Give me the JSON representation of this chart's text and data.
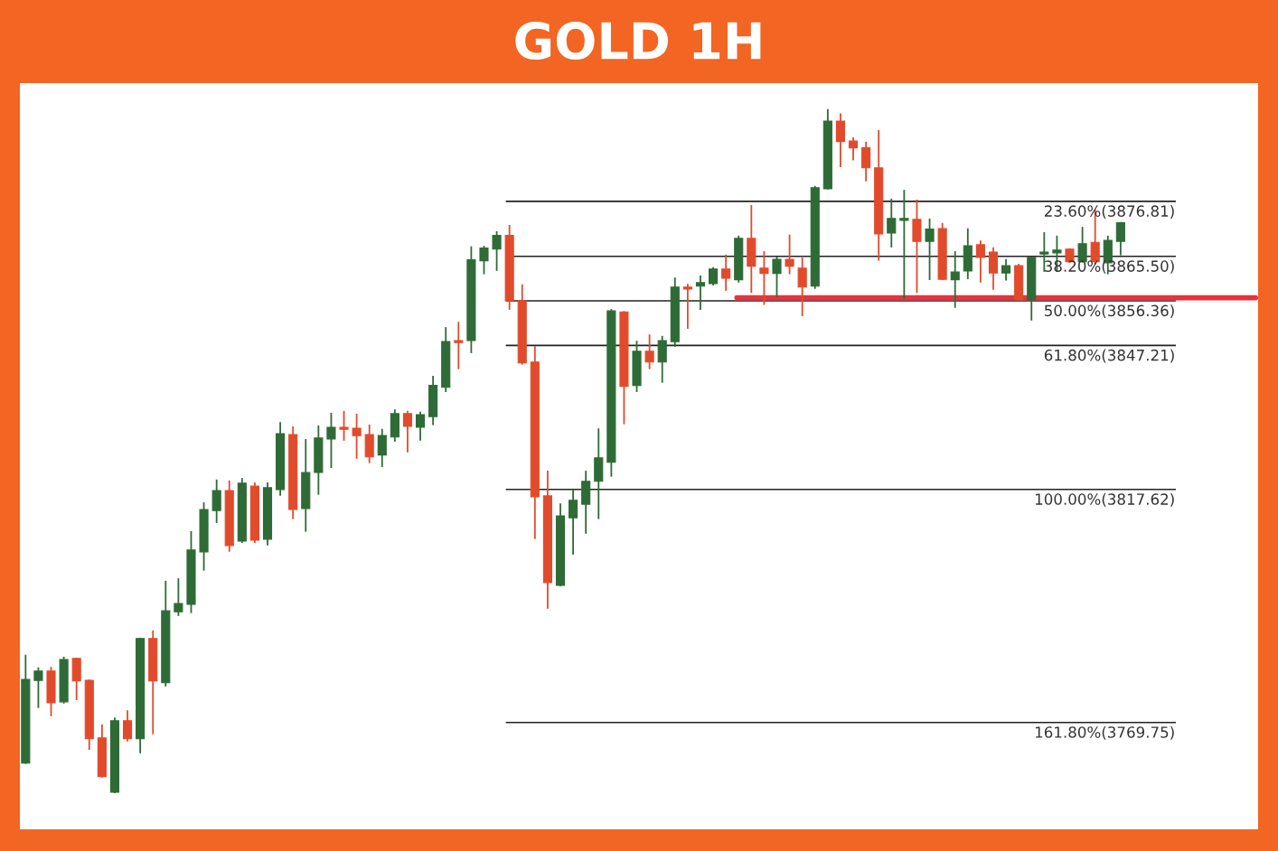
{
  "chart_data": {
    "type": "candlestick",
    "title": "GOLD 1H",
    "categories": [
      null,
      null,
      null,
      null,
      null,
      null,
      null,
      null,
      null,
      null,
      null,
      null,
      null,
      null,
      null,
      null,
      null,
      null,
      null,
      null,
      null,
      null,
      null,
      null,
      null,
      null,
      null,
      null,
      null,
      null,
      null,
      null,
      null,
      null,
      null,
      null,
      null,
      null,
      null,
      null,
      null,
      null,
      null,
      null,
      null,
      null,
      null,
      null,
      null,
      null,
      null,
      null,
      null,
      null,
      null,
      null,
      null,
      null,
      null,
      null,
      null,
      null,
      null,
      null,
      null,
      null,
      null,
      null,
      null,
      null,
      null,
      null,
      null,
      null,
      null,
      null,
      null,
      null,
      null,
      null,
      null,
      null,
      null,
      null,
      null,
      null,
      null
    ],
    "ohlc": [
      [
        3761.4,
        3783.5,
        3761.4,
        3778.6
      ],
      [
        3778.4,
        3780.9,
        3772.9,
        3780.3
      ],
      [
        3780.3,
        3781.0,
        3771.2,
        3773.8
      ],
      [
        3774.0,
        3783.1,
        3773.8,
        3782.7
      ],
      [
        3782.9,
        3782.9,
        3774.5,
        3778.3
      ],
      [
        3778.4,
        3778.4,
        3764.3,
        3766.4
      ],
      [
        3766.6,
        3769.2,
        3758.6,
        3758.6
      ],
      [
        3755.4,
        3770.6,
        3755.4,
        3770.1
      ],
      [
        3770.1,
        3772.1,
        3766.0,
        3766.4
      ],
      [
        3766.4,
        3787.0,
        3763.6,
        3787.0
      ],
      [
        3787.0,
        3788.5,
        3767.5,
        3778.3
      ],
      [
        3777.9,
        3798.7,
        3777.3,
        3792.7
      ],
      [
        3792.5,
        3799.2,
        3791.8,
        3794.2
      ],
      [
        3794.0,
        3808.9,
        3792.4,
        3805.2
      ],
      [
        3804.8,
        3814.8,
        3801.1,
        3813.5
      ],
      [
        3813.3,
        3819.5,
        3810.9,
        3817.4
      ],
      [
        3817.4,
        3819.3,
        3805.0,
        3806.1
      ],
      [
        3807.0,
        3819.8,
        3806.8,
        3818.9
      ],
      [
        3818.3,
        3818.9,
        3806.8,
        3807.2
      ],
      [
        3807.4,
        3818.9,
        3806.3,
        3818.0
      ],
      [
        3817.6,
        3831.3,
        3816.5,
        3829.1
      ],
      [
        3828.9,
        3830.4,
        3811.7,
        3813.5
      ],
      [
        3813.7,
        3827.8,
        3809.1,
        3821.1
      ],
      [
        3821.1,
        3830.6,
        3816.7,
        3828.2
      ],
      [
        3828.0,
        3833.2,
        3822.2,
        3830.4
      ],
      [
        3830.4,
        3833.6,
        3827.8,
        3830.0
      ],
      [
        3830.2,
        3833.0,
        3824.1,
        3828.7
      ],
      [
        3828.9,
        3830.8,
        3823.2,
        3824.3
      ],
      [
        3824.7,
        3829.9,
        3822.4,
        3828.7
      ],
      [
        3828.4,
        3833.9,
        3827.6,
        3833.2
      ],
      [
        3833.2,
        3833.6,
        3825.4,
        3830.6
      ],
      [
        3830.4,
        3833.4,
        3827.8,
        3833.0
      ],
      [
        3832.6,
        3840.8,
        3831.0,
        3839.0
      ],
      [
        3838.6,
        3850.8,
        3837.8,
        3848.0
      ],
      [
        3848.2,
        3851.9,
        3842.5,
        3847.8
      ],
      [
        3848.2,
        3867.4,
        3845.8,
        3864.8
      ],
      [
        3864.6,
        3867.5,
        3862.0,
        3867.2
      ],
      [
        3867.0,
        3870.5,
        3862.7,
        3869.8
      ],
      [
        3869.8,
        3871.8,
        3854.7,
        3856.4
      ],
      [
        3856.4,
        3859.6,
        3843.4,
        3843.6
      ],
      [
        3843.8,
        3846.9,
        3807.6,
        3816.1
      ],
      [
        3816.3,
        3821.3,
        3793.3,
        3798.5
      ],
      [
        3797.9,
        3814.6,
        3797.9,
        3812.2
      ],
      [
        3811.8,
        3817.4,
        3804.4,
        3815.4
      ],
      [
        3814.6,
        3821.3,
        3808.7,
        3819.3
      ],
      [
        3819.3,
        3830.0,
        3811.7,
        3824.1
      ],
      [
        3823.2,
        3854.5,
        3820.4,
        3854.3
      ],
      [
        3854.1,
        3854.1,
        3831.2,
        3838.8
      ],
      [
        3839.0,
        3848.0,
        3837.8,
        3846.0
      ],
      [
        3846.0,
        3849.3,
        3842.5,
        3843.8
      ],
      [
        3843.8,
        3849.0,
        3839.7,
        3848.2
      ],
      [
        3848.0,
        3861.0,
        3847.1,
        3859.2
      ],
      [
        3859.2,
        3859.7,
        3850.8,
        3858.8
      ],
      [
        3859.4,
        3861.4,
        3854.7,
        3860.1
      ],
      [
        3859.9,
        3863.1,
        3859.7,
        3862.9
      ],
      [
        3862.9,
        3865.7,
        3858.6,
        3861.0
      ],
      [
        3860.7,
        3869.6,
        3860.3,
        3869.2
      ],
      [
        3869.2,
        3875.9,
        3858.2,
        3863.5
      ],
      [
        3863.1,
        3866.4,
        3855.7,
        3862.0
      ],
      [
        3862.0,
        3865.3,
        3857.3,
        3864.9
      ],
      [
        3864.9,
        3869.8,
        3862.0,
        3863.5
      ],
      [
        3863.1,
        3865.1,
        3853.4,
        3859.2
      ],
      [
        3859.4,
        3879.8,
        3859.0,
        3879.6
      ],
      [
        3879.4,
        3895.6,
        3879.4,
        3893.3
      ],
      [
        3893.3,
        3894.7,
        3884.0,
        3889.1
      ],
      [
        3889.2,
        3889.8,
        3885.4,
        3887.8
      ],
      [
        3887.8,
        3888.9,
        3881.1,
        3883.7
      ],
      [
        3883.7,
        3891.3,
        3864.8,
        3870.1
      ],
      [
        3870.3,
        3877.2,
        3867.5,
        3873.3
      ],
      [
        3872.9,
        3879.0,
        3857.0,
        3873.3
      ],
      [
        3873.1,
        3877.0,
        3858.2,
        3868.6
      ],
      [
        3868.6,
        3873.1,
        3860.8,
        3871.1
      ],
      [
        3871.2,
        3872.2,
        3860.8,
        3860.8
      ],
      [
        3860.7,
        3866.4,
        3855.1,
        3862.3
      ],
      [
        3862.5,
        3871.1,
        3861.0,
        3867.7
      ],
      [
        3867.9,
        3868.6,
        3860.3,
        3865.3
      ],
      [
        3866.4,
        3867.2,
        3858.8,
        3862.1
      ],
      [
        3862.1,
        3864.8,
        3860.7,
        3863.6
      ],
      [
        3863.6,
        3863.8,
        3856.6,
        3856.6
      ],
      [
        3856.6,
        3865.3,
        3852.5,
        3865.3
      ],
      [
        3866.0,
        3870.3,
        3862.5,
        3866.4
      ],
      [
        3866.2,
        3869.6,
        3862.5,
        3866.8
      ],
      [
        3867.0,
        3867.0,
        3864.4,
        3864.4
      ],
      [
        3864.4,
        3871.4,
        3864.4,
        3868.1
      ],
      [
        3868.4,
        3875.0,
        3864.0,
        3864.4
      ],
      [
        3864.2,
        3869.6,
        3862.0,
        3868.8
      ],
      [
        3868.6,
        3872.4,
        3865.9,
        3872.4
      ]
    ],
    "colors": [
      "#2e6b36",
      "#2e6b36",
      "#e14b2c",
      "#2e6b36",
      "#e14b2c",
      "#e14b2c",
      "#e14b2c",
      "#2e6b36",
      "#e14b2c",
      "#2e6b36",
      "#e14b2c",
      "#2e6b36",
      "#2e6b36",
      "#2e6b36",
      "#2e6b36",
      "#2e6b36",
      "#e14b2c",
      "#2e6b36",
      "#e14b2c",
      "#2e6b36",
      "#2e6b36",
      "#e14b2c",
      "#2e6b36",
      "#2e6b36",
      "#2e6b36",
      "#e14b2c",
      "#e14b2c",
      "#e14b2c",
      "#2e6b36",
      "#2e6b36",
      "#e14b2c",
      "#2e6b36",
      "#2e6b36",
      "#2e6b36",
      "#e14b2c",
      "#2e6b36",
      "#2e6b36",
      "#2e6b36",
      "#e14b2c",
      "#e14b2c",
      "#e14b2c",
      "#e14b2c",
      "#2e6b36",
      "#2e6b36",
      "#2e6b36",
      "#2e6b36",
      "#2e6b36",
      "#e14b2c",
      "#2e6b36",
      "#e14b2c",
      "#2e6b36",
      "#2e6b36",
      "#e14b2c",
      "#2e6b36",
      "#2e6b36",
      "#e14b2c",
      "#2e6b36",
      "#e14b2c",
      "#e14b2c",
      "#2e6b36",
      "#e14b2c",
      "#e14b2c",
      "#2e6b36",
      "#2e6b36",
      "#e14b2c",
      "#e14b2c",
      "#e14b2c",
      "#e14b2c",
      "#2e6b36",
      "#2e6b36",
      "#e14b2c",
      "#2e6b36",
      "#e14b2c",
      "#2e6b36",
      "#2e6b36",
      "#e14b2c",
      "#e14b2c",
      "#2e6b36",
      "#e14b2c",
      "#2e6b36",
      "#2e6b36",
      "#2e6b36",
      "#e14b2c",
      "#2e6b36",
      "#e14b2c",
      "#2e6b36",
      "#2e6b36"
    ],
    "ylim": [
      3747.8,
      3901.1
    ],
    "ref_lines": [
      {
        "axis": "y",
        "value": 3876.81,
        "label": "23.60%(3876.81)",
        "color": "#222222"
      },
      {
        "axis": "y",
        "value": 3865.5,
        "label": "38.20%(3865.50)",
        "color": "#222222"
      },
      {
        "axis": "y",
        "value": 3856.36,
        "label": "50.00%(3856.36)",
        "color": "#222222"
      },
      {
        "axis": "y",
        "value": 3847.21,
        "label": "61.80%(3847.21)",
        "color": "#222222"
      },
      {
        "axis": "y",
        "value": 3817.62,
        "label": "100.00%(3817.62)",
        "color": "#222222"
      },
      {
        "axis": "y",
        "value": 3769.75,
        "label": "161.80%(3769.75)",
        "color": "#222222"
      },
      {
        "axis": "y",
        "value": 3857.0,
        "label": null,
        "color": "#e8323c"
      }
    ],
    "grid": false,
    "legend": false
  }
}
